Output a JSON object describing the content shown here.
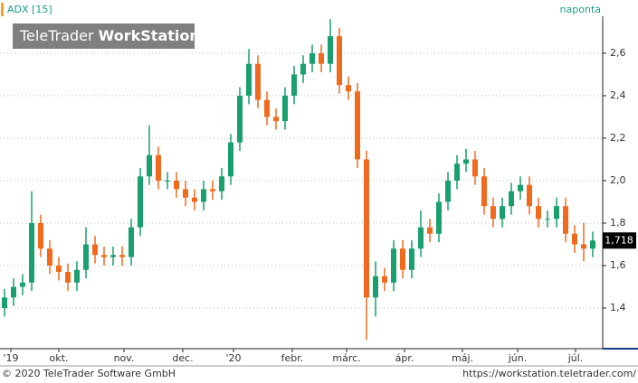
{
  "chart_data": {
    "type": "candlestick",
    "title": "ADX [15]",
    "interval": "naponta",
    "watermark": [
      "TeleTrader",
      "WorkStation"
    ],
    "footer_left": "© 2020 TeleTrader Software GmbH",
    "footer_right": "https://workstation.teletrader.com/",
    "up_color": "#19a06e",
    "down_color": "#f06a1e",
    "grid": true,
    "x": [
      0,
      1,
      2,
      3,
      4,
      5,
      6,
      7,
      8,
      9,
      10,
      11,
      12,
      13,
      14,
      15,
      16,
      17,
      18,
      19,
      20,
      21,
      22,
      23,
      24,
      25,
      26,
      27,
      28,
      29,
      30,
      31,
      32,
      33,
      34,
      35,
      36,
      37,
      38,
      39,
      40,
      41,
      42,
      43,
      44,
      45,
      46,
      47,
      48,
      49,
      50,
      51,
      52,
      53,
      54,
      55,
      56,
      57,
      58,
      59,
      60,
      61,
      62,
      63,
      64,
      65
    ],
    "open": [
      1.4,
      1.45,
      1.5,
      1.52,
      1.8,
      1.68,
      1.6,
      1.57,
      1.52,
      1.58,
      1.7,
      1.65,
      1.64,
      1.65,
      1.64,
      1.78,
      2.02,
      2.12,
      2.0,
      2.0,
      1.96,
      1.92,
      1.9,
      1.96,
      1.95,
      2.02,
      2.18,
      2.4,
      2.55,
      2.38,
      2.3,
      2.28,
      2.4,
      2.5,
      2.55,
      2.6,
      2.55,
      2.68,
      2.45,
      2.42,
      2.1,
      1.45,
      1.55,
      1.52,
      1.68,
      1.58,
      1.68,
      1.78,
      1.75,
      1.9,
      2.0,
      2.08,
      2.1,
      2.02,
      1.88,
      1.82,
      1.88,
      1.95,
      1.98,
      1.88,
      1.82,
      1.82,
      1.88,
      1.75,
      1.7,
      1.68
    ],
    "high": [
      1.49,
      1.54,
      1.56,
      1.95,
      1.84,
      1.72,
      1.64,
      1.61,
      1.62,
      1.78,
      1.74,
      1.69,
      1.69,
      1.69,
      1.82,
      2.06,
      2.26,
      2.16,
      2.04,
      2.04,
      2.0,
      1.96,
      2.0,
      2.0,
      2.06,
      2.22,
      2.44,
      2.62,
      2.59,
      2.42,
      2.34,
      2.44,
      2.54,
      2.59,
      2.64,
      2.64,
      2.76,
      2.72,
      2.49,
      2.46,
      2.14,
      1.62,
      1.59,
      1.72,
      1.72,
      1.72,
      1.86,
      1.82,
      1.94,
      2.04,
      2.12,
      2.15,
      2.14,
      2.06,
      1.92,
      1.92,
      1.99,
      2.02,
      2.02,
      1.92,
      1.86,
      1.92,
      1.92,
      1.79,
      1.8,
      1.76
    ],
    "low": [
      1.36,
      1.41,
      1.46,
      1.48,
      1.64,
      1.56,
      1.53,
      1.48,
      1.48,
      1.54,
      1.61,
      1.6,
      1.6,
      1.6,
      1.6,
      1.74,
      1.98,
      1.96,
      1.96,
      1.92,
      1.88,
      1.86,
      1.86,
      1.91,
      1.91,
      1.98,
      2.14,
      2.36,
      2.34,
      2.26,
      2.24,
      2.24,
      2.36,
      2.46,
      2.51,
      2.51,
      2.51,
      2.41,
      2.38,
      2.06,
      1.25,
      1.36,
      1.48,
      1.48,
      1.54,
      1.54,
      1.64,
      1.71,
      1.71,
      1.86,
      1.96,
      2.04,
      1.98,
      1.84,
      1.78,
      1.78,
      1.84,
      1.91,
      1.84,
      1.78,
      1.78,
      1.78,
      1.71,
      1.66,
      1.62,
      1.64
    ],
    "close": [
      1.45,
      1.5,
      1.52,
      1.8,
      1.68,
      1.6,
      1.57,
      1.52,
      1.58,
      1.7,
      1.65,
      1.64,
      1.65,
      1.64,
      1.78,
      2.02,
      2.12,
      2.0,
      2.0,
      1.96,
      1.92,
      1.9,
      1.96,
      1.95,
      2.02,
      2.18,
      2.4,
      2.55,
      2.38,
      2.3,
      2.28,
      2.4,
      2.5,
      2.55,
      2.6,
      2.55,
      2.68,
      2.45,
      2.42,
      2.1,
      1.45,
      1.55,
      1.52,
      1.68,
      1.58,
      1.68,
      1.78,
      1.75,
      1.9,
      2.0,
      2.08,
      2.1,
      2.02,
      1.88,
      1.82,
      1.88,
      1.95,
      1.98,
      1.88,
      1.82,
      1.82,
      1.88,
      1.75,
      1.7,
      1.68,
      1.718
    ],
    "last_value_label": "1,718",
    "xlim": [
      -0.5,
      66
    ],
    "xticks": [
      {
        "value": 0.7,
        "label": "'19"
      },
      {
        "value": 6,
        "label": "okt."
      },
      {
        "value": 13.2,
        "label": "nov."
      },
      {
        "value": 19.7,
        "label": "dec."
      },
      {
        "value": 25.3,
        "label": "'20"
      },
      {
        "value": 31.8,
        "label": "febr."
      },
      {
        "value": 37.8,
        "label": "márc."
      },
      {
        "value": 44.2,
        "label": "ápr."
      },
      {
        "value": 50.6,
        "label": "máj."
      },
      {
        "value": 56.7,
        "label": "jún."
      },
      {
        "value": 63.1,
        "label": "júl."
      }
    ],
    "ylim": [
      1.213,
      2.774
    ],
    "yticks": [
      {
        "value": 1.4,
        "label": "1,4"
      },
      {
        "value": 1.6,
        "label": "1,6"
      },
      {
        "value": 1.8,
        "label": "1,8"
      },
      {
        "value": 2.0,
        "label": "2,0"
      },
      {
        "value": 2.2,
        "label": "2,2"
      },
      {
        "value": 2.4,
        "label": "2,4"
      },
      {
        "value": 2.6,
        "label": "2,6"
      }
    ]
  }
}
